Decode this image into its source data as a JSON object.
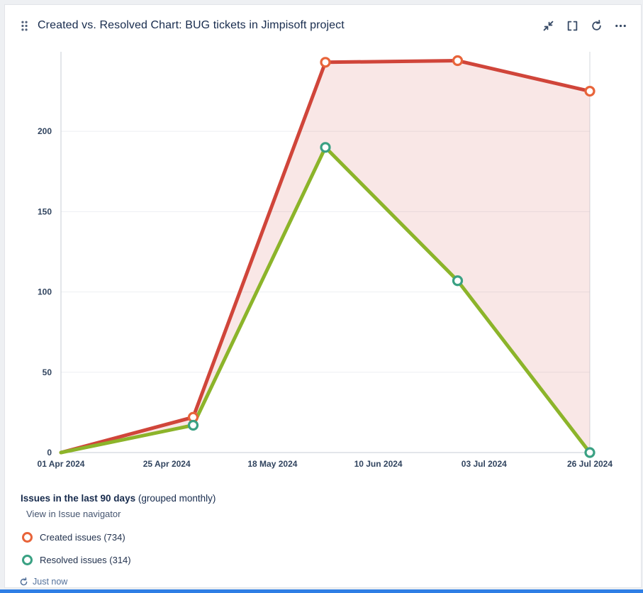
{
  "header": {
    "title": "Created vs. Resolved Chart: BUG tickets in Jimpisoft project",
    "actions": [
      {
        "name": "minimize"
      },
      {
        "name": "fullscreen"
      },
      {
        "name": "refresh"
      },
      {
        "name": "more"
      }
    ]
  },
  "chart_data": {
    "type": "line",
    "title": "Created vs. Resolved Chart: BUG tickets in Jimpisoft project",
    "x_tick_labels": [
      "01 Apr 2024",
      "25 Apr 2024",
      "18 May 2024",
      "10 Jun 2024",
      "03 Jul 2024",
      "26 Jul 2024"
    ],
    "y_ticks": [
      0,
      50,
      100,
      150,
      200
    ],
    "ylim": [
      0,
      246
    ],
    "grid": true,
    "legend_position": "bottom",
    "series": [
      {
        "name": "Created issues",
        "total": 734,
        "color": "#d0453a",
        "marker_color": "#e8643a",
        "values": [
          0,
          22,
          243,
          244,
          225
        ]
      },
      {
        "name": "Resolved issues",
        "total": 314,
        "color": "#8cb42a",
        "marker_color": "#3aa183",
        "values": [
          0,
          17,
          190,
          107,
          0
        ]
      }
    ],
    "area_between_series": true,
    "area_color": "rgba(208,69,58,0.13)"
  },
  "legend": {
    "heading_bold": "Issues in the last 90 days",
    "heading_normal": " (grouped monthly)",
    "link_label": "View in Issue navigator",
    "items": [
      {
        "label": "Created issues (734)"
      },
      {
        "label": "Resolved issues (314)"
      }
    ]
  },
  "footer": {
    "last_refreshed": "Just now"
  },
  "colors": {
    "accent_bar": "#2e7ee5",
    "created": "#d0453a",
    "resolved": "#8cb42a"
  }
}
